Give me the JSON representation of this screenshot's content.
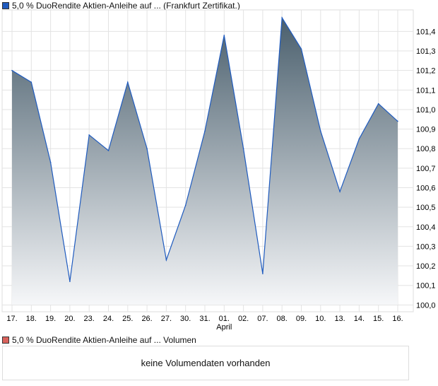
{
  "legend_price": "5,0 % DuoRendite Aktien-Anleihe auf ... (Frankfurt Zertifikat.)",
  "legend_volume": "5,0 % DuoRendite Aktien-Anleihe auf ... Volumen",
  "volume_message": "keine Volumendaten vorhanden",
  "colors": {
    "price": "#1f5bbf",
    "volume": "#d9625c",
    "fill_top": "#4a5f6d"
  },
  "chart_data": {
    "type": "area",
    "categories": [
      "17.",
      "18.",
      "19.",
      "20.",
      "23.",
      "24.",
      "25.",
      "26.",
      "27.",
      "30.",
      "31.",
      "01.",
      "02.",
      "07.",
      "08.",
      "09.",
      "10.",
      "13.",
      "14.",
      "15.",
      "16."
    ],
    "month_label": "April",
    "values": [
      101.2,
      101.14,
      100.73,
      100.12,
      100.87,
      100.79,
      101.14,
      100.8,
      100.23,
      100.51,
      100.89,
      101.38,
      100.8,
      100.16,
      101.47,
      101.31,
      100.89,
      100.58,
      100.85,
      101.03,
      100.94
    ],
    "yticks": [
      "100,0",
      "100,1",
      "100,2",
      "100,3",
      "100,4",
      "100,5",
      "100,6",
      "100,7",
      "100,8",
      "100,9",
      "101,0",
      "101,1",
      "101,2",
      "101,3",
      "101,4"
    ],
    "ylim": [
      99.965,
      101.51
    ],
    "grid": true
  }
}
